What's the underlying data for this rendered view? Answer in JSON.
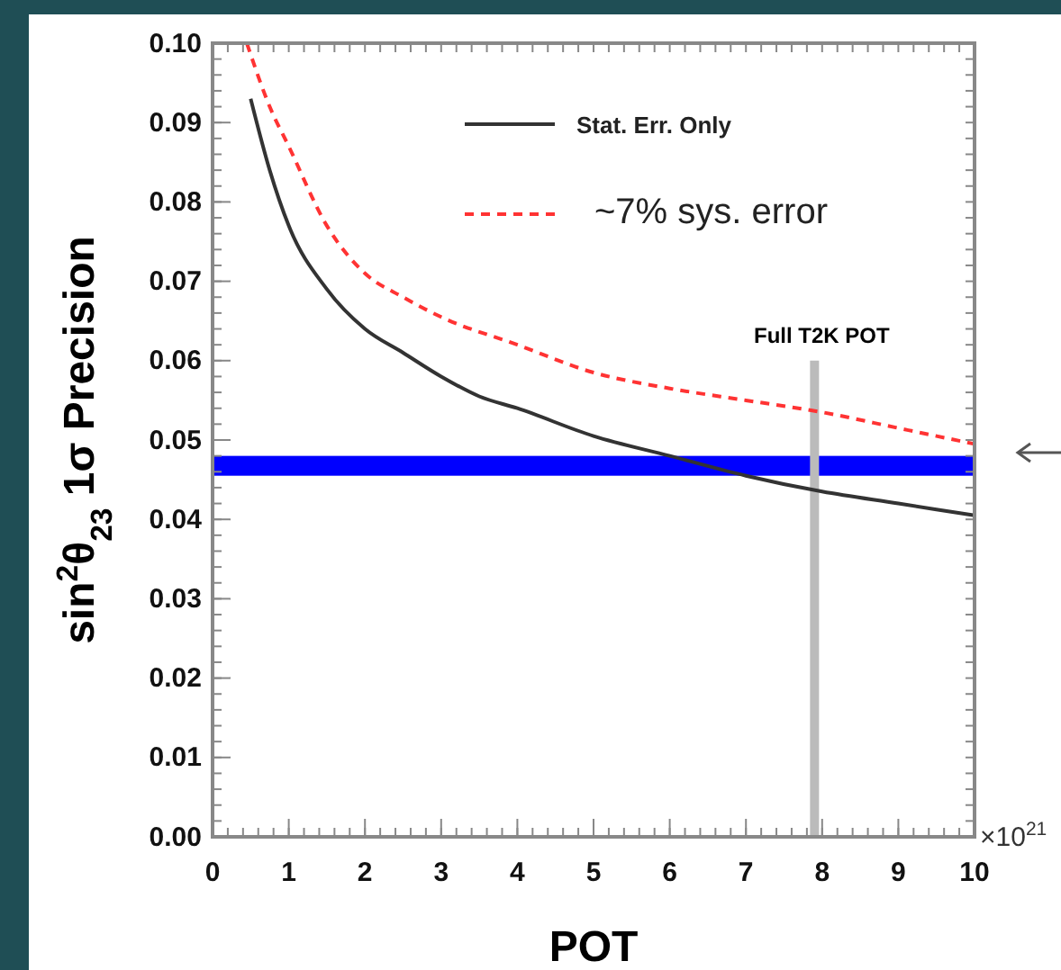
{
  "chart_data": {
    "type": "line",
    "xlabel": "POT",
    "ylabel": "sin$^{2}$θ$_{23}$ 1σ Precision",
    "xlim": [
      0,
      10
    ],
    "xticks": [
      0,
      1,
      2,
      3,
      4,
      5,
      6,
      7,
      8,
      9,
      10
    ],
    "ylim": [
      0,
      0.1
    ],
    "yticks": [
      {
        "value": 0,
        "label": "0.00"
      },
      {
        "value": 0.01,
        "label": "0.01"
      },
      {
        "value": 0.02,
        "label": "0.02"
      },
      {
        "value": 0.03,
        "label": "0.03"
      },
      {
        "value": 0.04,
        "label": "0.04"
      },
      {
        "value": 0.05,
        "label": "0.05"
      },
      {
        "value": 0.06,
        "label": "0.06"
      },
      {
        "value": 0.07,
        "label": "0.07"
      },
      {
        "value": 0.08,
        "label": "0.08"
      },
      {
        "value": 0.09,
        "label": "0.09"
      },
      {
        "value": 0.1,
        "label": "0.10"
      }
    ],
    "series": [
      {
        "name": "Stat. Err. Only",
        "color": "#333333",
        "line_style": "solid",
        "x": [
          0.5,
          0.75,
          1,
          1.5,
          2,
          2.5,
          3,
          3.5,
          4,
          5,
          6,
          7,
          8,
          9,
          10
        ],
        "values": [
          0.093,
          0.084,
          0.077,
          0.069,
          0.064,
          0.061,
          0.058,
          0.0555,
          0.054,
          0.0505,
          0.048,
          0.0455,
          0.0435,
          0.042,
          0.0405
        ]
      },
      {
        "name": "~7% sys. error",
        "color": "#ff3333",
        "line_style": "dashed",
        "x": [
          0.45,
          0.75,
          1,
          1.5,
          2,
          2.5,
          3,
          4,
          5,
          6,
          7,
          8,
          9,
          10
        ],
        "values": [
          0.1,
          0.092,
          0.087,
          0.077,
          0.071,
          0.068,
          0.0655,
          0.062,
          0.0585,
          0.0565,
          0.055,
          0.0535,
          0.0515,
          0.0495
        ]
      }
    ],
    "bands": [
      {
        "axis": "y",
        "from": 0.0455,
        "to": 0.048,
        "color": "#0000ff"
      }
    ],
    "ref_lines": [
      {
        "axis": "x",
        "value": 7.9,
        "label": "Full T2K POT",
        "color": "#bbbbbb"
      }
    ],
    "annotations": [
      "×10$^{21}$"
    ],
    "legend": "top right",
    "grid": false
  }
}
